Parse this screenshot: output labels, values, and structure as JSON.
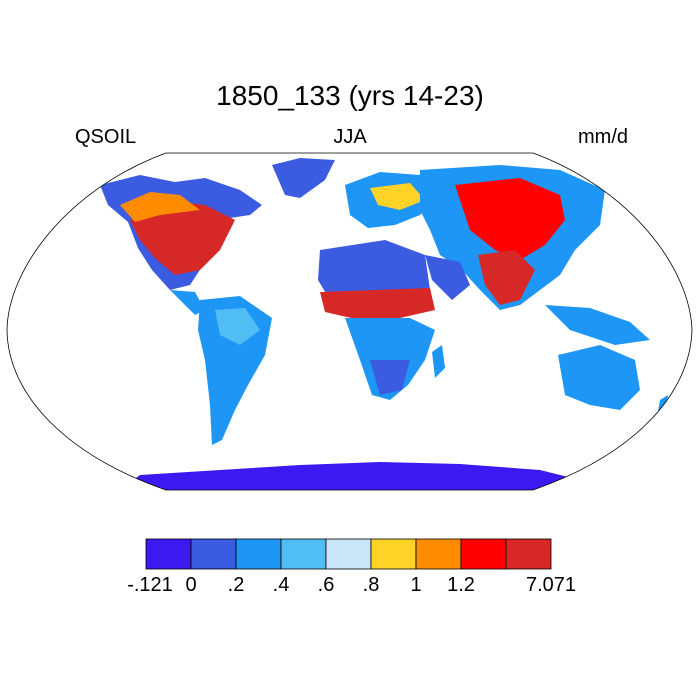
{
  "title": "1850_133 (yrs 14-23)",
  "left_label": "QSOIL",
  "center_label": "JJA",
  "right_label": "mm/d",
  "colorbar": {
    "labels": [
      "-.121",
      "0",
      ".2",
      ".4",
      ".6",
      ".8",
      "1",
      "1.2",
      "7.071"
    ],
    "colors": [
      "#3c19f0",
      "#3b5be0",
      "#1e96f5",
      "#50bef5",
      "#c8e6f8",
      "#ffd228",
      "#ff8c00",
      "#ff0000",
      "#d72828"
    ]
  },
  "map_colors": {
    "ocean": "#ffffff",
    "outline": "#000000"
  }
}
